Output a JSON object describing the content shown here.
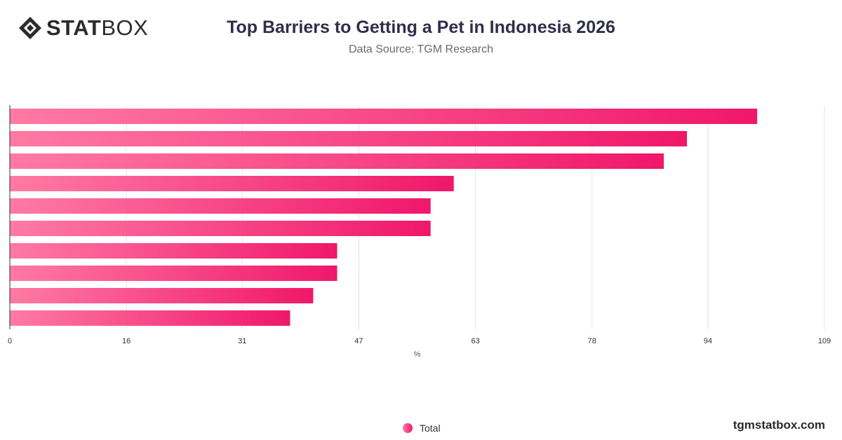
{
  "brand": {
    "logo_bold": "STAT",
    "logo_light": "BOX",
    "watermark": "tgmstatbox.com"
  },
  "header": {
    "title": "Top Barriers to Getting a Pet in Indonesia 2026",
    "subtitle": "Data Source: TGM Research"
  },
  "legend": {
    "items": [
      {
        "label": "Total",
        "color_start": "#ff7aa5",
        "color_end": "#f0176a"
      }
    ]
  },
  "chart_data": {
    "type": "bar",
    "orientation": "horizontal",
    "title": "Top Barriers to Getting a Pet in Indonesia 2026",
    "xlabel": "%",
    "ylabel": "",
    "xlim": [
      0,
      109
    ],
    "x_ticks": [
      "0",
      "16",
      "31",
      "47",
      "63",
      "78",
      "94",
      "109"
    ],
    "x_tick_values": [
      0,
      15.6,
      31.1,
      46.7,
      62.3,
      77.9,
      93.4,
      109
    ],
    "grid": true,
    "legend_position": "bottom-center",
    "series": [
      {
        "name": "Total",
        "values": [
          100,
          90.6,
          87.5,
          59.4,
          56.3,
          56.3,
          43.8,
          43.8,
          40.6,
          37.5
        ]
      }
    ],
    "colors": {
      "bar_start": "#ff7aa5",
      "bar_end": "#f0176a",
      "grid": "#e3e3e3",
      "axis": "#333333"
    }
  }
}
